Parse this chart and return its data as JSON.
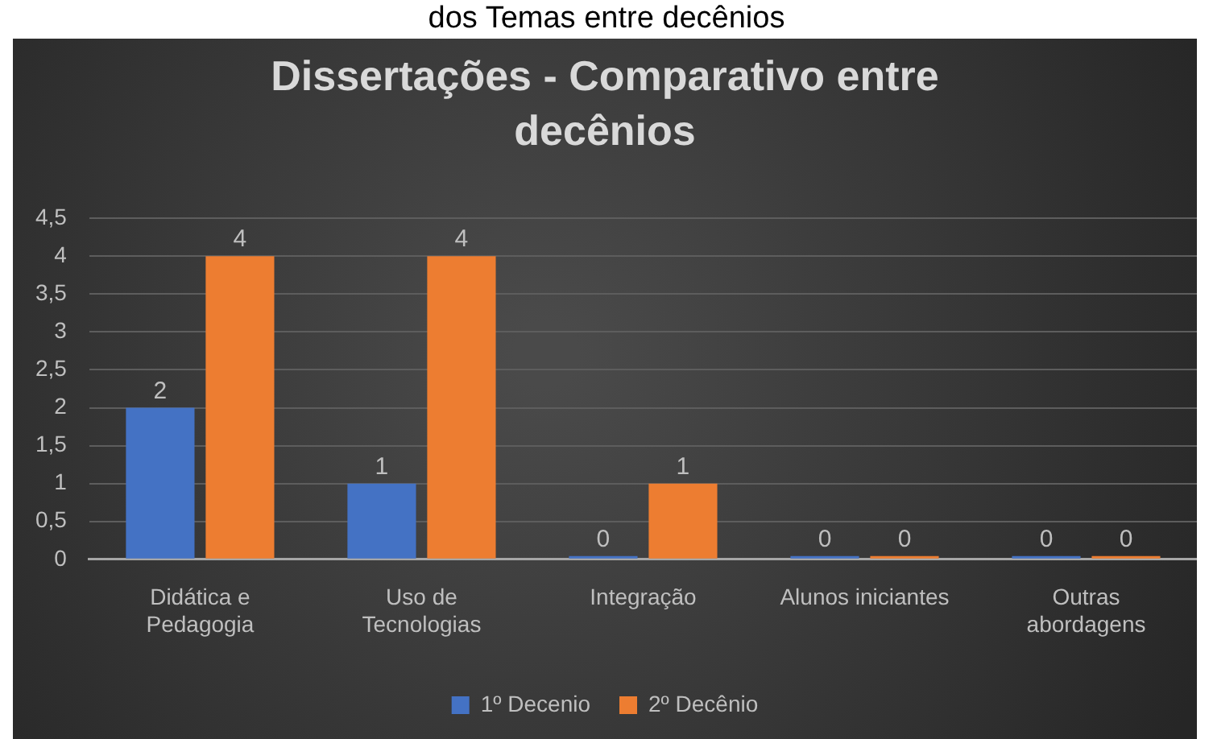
{
  "chart_data": {
    "type": "bar",
    "title": "Dissertações - Comparativo entre decênios",
    "annotations": [
      "dos Temas entre decênios"
    ],
    "categories": [
      "Didática e Pedagogia",
      "Uso de Tecnologias",
      "Integração",
      "Alunos iniciantes",
      "Outras abordagens"
    ],
    "series": [
      {
        "name": "1º Decenio",
        "color": "#4472c4",
        "values": [
          2,
          1,
          0,
          0,
          0
        ]
      },
      {
        "name": "2º Decênio",
        "color": "#ed7d31",
        "values": [
          4,
          4,
          1,
          0,
          0
        ]
      }
    ],
    "ylim": [
      0,
      4.5
    ],
    "yticks": [
      0,
      {
        "value": 0.5,
        "label": "0,5"
      },
      1,
      {
        "value": 1.5,
        "label": "1,5"
      },
      2,
      {
        "value": 2.5,
        "label": "2,5"
      },
      3,
      {
        "value": 3.5,
        "label": "3,5"
      },
      4,
      {
        "value": 4.5,
        "label": "4,5"
      }
    ],
    "data_labels": true,
    "grid": "y",
    "legend": "bottom"
  }
}
